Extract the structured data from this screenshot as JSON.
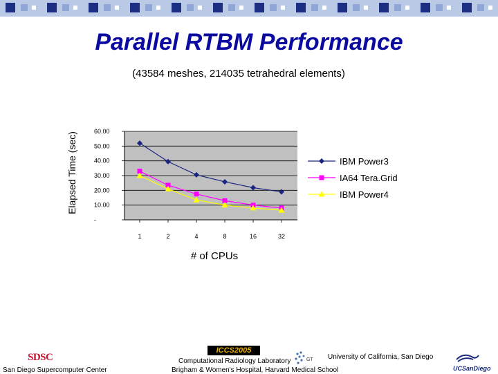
{
  "header": {
    "title": "Parallel RTBM Performance",
    "subtitle": "(43584 meshes, 214035 tetrahedral elements)"
  },
  "colors": {
    "title": "#0a0aa0",
    "band_light": "#b9c9e6",
    "band_dark": "#1c2f82",
    "plot_bg": "#c0c0c0",
    "ibm_power3": "#1a237e",
    "ia64": "#ff00ff",
    "ibm_power4": "#ffff00"
  },
  "chart_data": {
    "type": "line",
    "ylabel": "Elapsed Time (sec)",
    "xlabel": "# of CPUs",
    "categories": [
      "1",
      "2",
      "4",
      "8",
      "16",
      "32"
    ],
    "y_ticks": [
      "60.00",
      "50.00",
      "40.00",
      "30.00",
      "20.00",
      "10.00",
      "-"
    ],
    "ylim": [
      0,
      60
    ],
    "grid": true,
    "legend_position": "right",
    "series": [
      {
        "name": "IBM Power3",
        "marker": "diamond",
        "color": "#1a237e",
        "values": [
          52.0,
          39.5,
          30.5,
          25.8,
          21.8,
          19.0
        ]
      },
      {
        "name": "IA64 Tera.Grid",
        "marker": "square",
        "color": "#ff00ff",
        "values": [
          33.0,
          23.5,
          17.5,
          13.0,
          10.0,
          8.0
        ]
      },
      {
        "name": "IBM Power4",
        "marker": "triangle",
        "color": "#ffff00",
        "values": [
          30.0,
          21.0,
          13.5,
          10.0,
          8.0,
          6.5
        ]
      }
    ]
  },
  "footer": {
    "sdsc_logo": "SDSC",
    "sdsc_name": "San Diego Supercomputer Center",
    "conference": "ICCS2005",
    "lab_line1": "Computational Radiology Laboratory",
    "lab_line2": "Brigham & Women's Hospital, Harvard Medical School",
    "university": "University of California, San Diego",
    "ucsd_logo": "UCSanDiego"
  }
}
